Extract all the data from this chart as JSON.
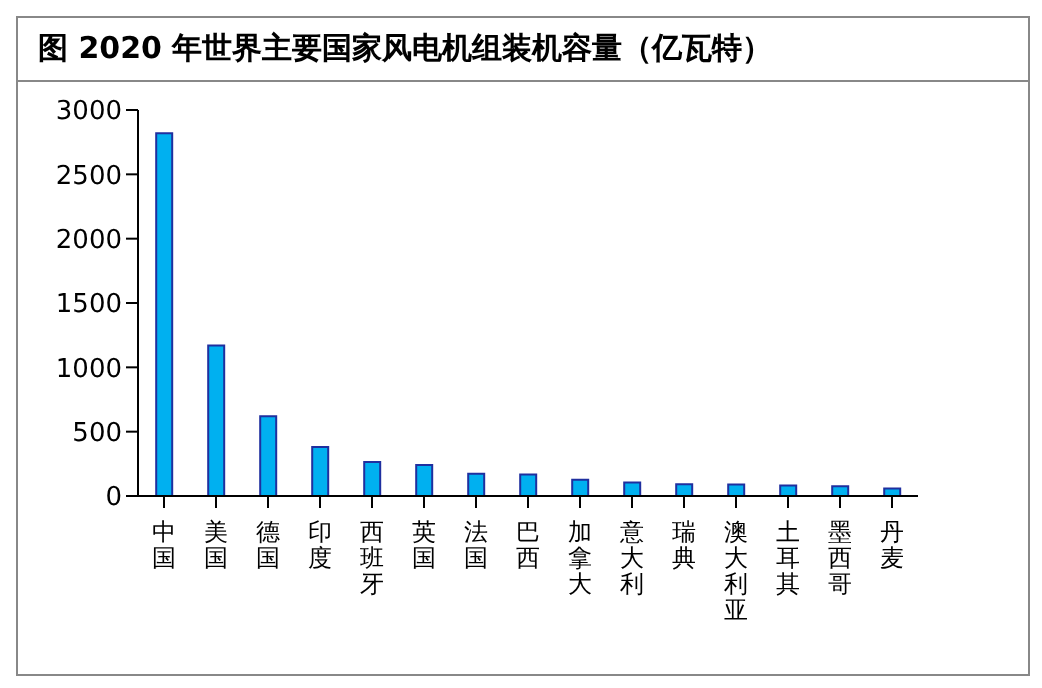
{
  "chart_data": {
    "type": "bar",
    "title": "图  2020 年世界主要国家风电机组装机容量（亿瓦特）",
    "categories": [
      "中国",
      "美国",
      "德国",
      "印度",
      "西班牙",
      "英国",
      "法国",
      "巴西",
      "加拿大",
      "意大利",
      "瑞典",
      "澳大利亚",
      "土耳其",
      "墨西哥",
      "丹麦"
    ],
    "values": [
      2820,
      1170,
      620,
      380,
      265,
      240,
      173,
      167,
      127,
      104,
      92,
      90,
      81,
      75,
      58
    ],
    "color": "#00b0f0",
    "ylim": [
      0,
      3000
    ],
    "yticks": [
      0,
      500,
      1000,
      1500,
      2000,
      2500,
      3000
    ],
    "grid": false,
    "legend": false
  }
}
